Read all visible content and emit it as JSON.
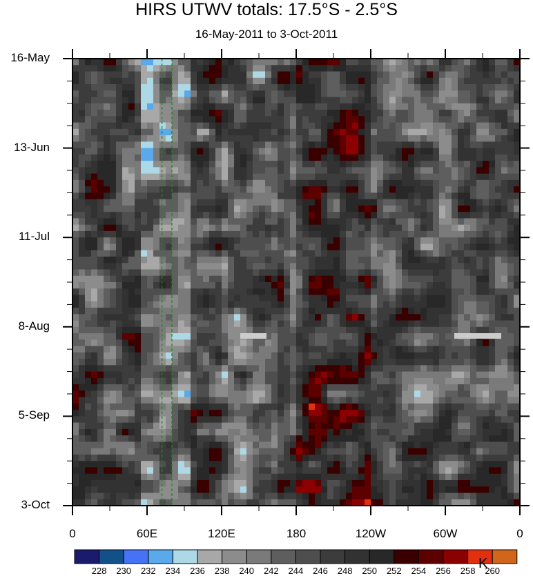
{
  "chart_data": {
    "type": "heatmap",
    "title": "HIRS UTWV totals: 17.5°S - 2.5°S",
    "subtitle": "16-May-2011 to 3-Oct-2011",
    "x_ticks": [
      "0",
      "60E",
      "120E",
      "180",
      "120W",
      "60W",
      "0"
    ],
    "x_range_deg": [
      0,
      360
    ],
    "y_ticks": [
      "16-May",
      "13-Jun",
      "11-Jul",
      "8-Aug",
      "5-Sep",
      "3-Oct"
    ],
    "y_range_days": [
      0,
      140
    ],
    "colorbar": {
      "labels": [
        "228",
        "230",
        "232",
        "234",
        "236",
        "238",
        "240",
        "242",
        "244",
        "246",
        "248",
        "250",
        "252",
        "254",
        "256",
        "258",
        "260"
      ],
      "colors": [
        "#1b1b6e",
        "#12508a",
        "#4673f5",
        "#5aa9ea",
        "#add8e6",
        "#a8a8a8",
        "#8c8c8c",
        "#7a7a7a",
        "#5e5e5e",
        "#4e4e4e",
        "#3c3c3c",
        "#323232",
        "#282828",
        "#3a0000",
        "#5c0000",
        "#8b0000",
        "#e03010",
        "#d0661a"
      ],
      "unit": "K"
    },
    "reference_lines_lon": [
      72,
      80
    ],
    "reference_line_color": "#1a8a1a"
  }
}
